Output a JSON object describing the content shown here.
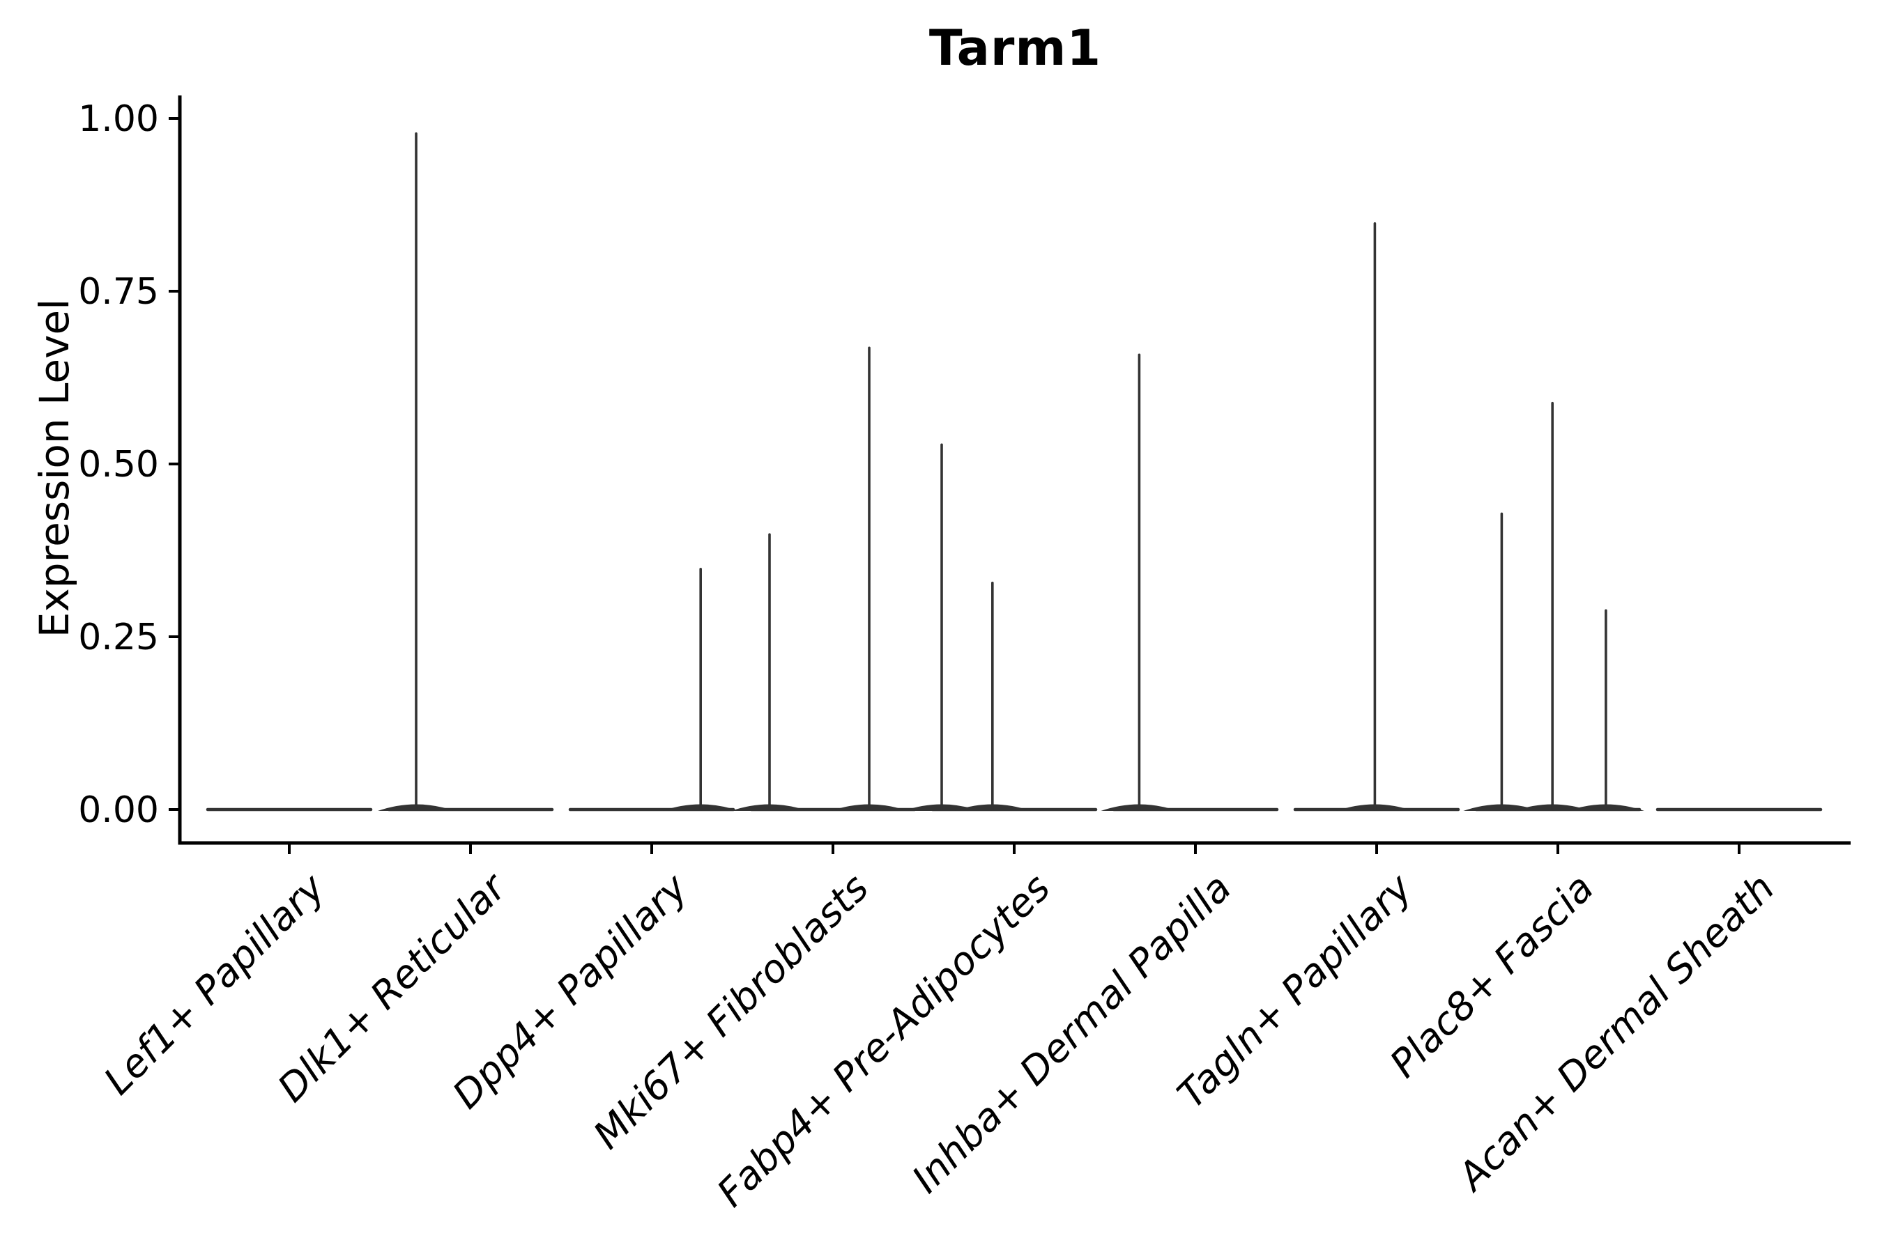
{
  "chart_data": {
    "type": "violin",
    "title": "Tarm1",
    "xlabel": "",
    "ylabel": "Expression Level",
    "ylim": [
      0,
      1.03
    ],
    "yticks": [
      0,
      0.25,
      0.5,
      0.75,
      1.0
    ],
    "yticklabels": [
      "0.00",
      "0.25",
      "0.50",
      "0.75",
      "1.00"
    ],
    "grid": false,
    "legend": "none",
    "categories": [
      "Lef1+ Papillary",
      "Dlk1+ Reticular",
      "Dpp4+ Papillary",
      "Mki67+ Fibroblasts",
      "Fabp4+ Pre-Adipocytes",
      "Inhba+ Dermal Papilla",
      "Tagln+ Papillary",
      "Plac8+ Fascia",
      "Acan+ Dermal Sheath"
    ],
    "violins": [
      {
        "category": "Lef1+ Papillary",
        "baseline_value": 0,
        "spikes": []
      },
      {
        "category": "Dlk1+ Reticular",
        "baseline_value": 0,
        "spikes": [
          {
            "offset": -0.3,
            "max": 0.98
          }
        ]
      },
      {
        "category": "Dpp4+ Papillary",
        "baseline_value": 0,
        "spikes": [
          {
            "offset": 0.27,
            "max": 0.35
          }
        ]
      },
      {
        "category": "Mki67+ Fibroblasts",
        "baseline_value": 0,
        "spikes": [
          {
            "offset": -0.35,
            "max": 0.4
          },
          {
            "offset": 0.2,
            "max": 0.67
          }
        ]
      },
      {
        "category": "Fabp4+ Pre-Adipocytes",
        "baseline_value": 0,
        "spikes": [
          {
            "offset": -0.4,
            "max": 0.53
          },
          {
            "offset": -0.12,
            "max": 0.33
          }
        ]
      },
      {
        "category": "Inhba+ Dermal Papilla",
        "baseline_value": 0,
        "spikes": [
          {
            "offset": -0.31,
            "max": 0.66
          }
        ]
      },
      {
        "category": "Tagln+ Papillary",
        "baseline_value": 0,
        "spikes": [
          {
            "offset": -0.01,
            "max": 0.85
          }
        ]
      },
      {
        "category": "Plac8+ Fascia",
        "baseline_value": 0,
        "spikes": [
          {
            "offset": -0.31,
            "max": 0.43
          },
          {
            "offset": -0.03,
            "max": 0.59
          },
          {
            "offset": 0.265,
            "max": 0.29
          }
        ]
      },
      {
        "category": "Acan+ Dermal Sheath",
        "baseline_value": 0,
        "spikes": []
      }
    ],
    "style": {
      "violin_color": "#333333",
      "axis_color": "#000000",
      "background": "#ffffff",
      "violin_width_fraction": 0.9
    }
  }
}
